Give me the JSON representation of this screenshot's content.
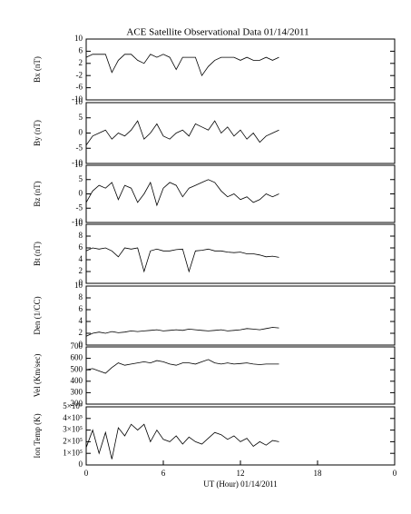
{
  "title": "ACE Satellite Observational Data   01/14/2011",
  "chart_data": [
    {
      "type": "line",
      "ylabel": "Bx (nT)",
      "color": "#000000",
      "ylim": [
        -10,
        10
      ],
      "yticks": [
        -10,
        -6,
        -2,
        2,
        6,
        10
      ],
      "x": [
        0,
        0.5,
        1,
        1.5,
        2,
        2.5,
        3,
        3.5,
        4,
        4.5,
        5,
        5.5,
        6,
        6.5,
        7,
        7.5,
        8,
        8.5,
        9,
        9.5,
        10,
        10.5,
        11,
        11.5,
        12,
        12.5,
        13,
        13.5,
        14,
        14.5,
        15
      ],
      "values": [
        4,
        5,
        5,
        5,
        -1,
        3,
        5,
        5,
        3,
        2,
        5,
        4,
        5,
        4,
        0,
        4,
        4,
        4,
        -2,
        1,
        3,
        4,
        4,
        4,
        3,
        4,
        3,
        3,
        4,
        3,
        4
      ]
    },
    {
      "type": "line",
      "ylabel": "By (nT)",
      "color": "#000000",
      "ylim": [
        -10,
        10
      ],
      "yticks": [
        -10,
        -5,
        0,
        5,
        10
      ],
      "x": [
        0,
        0.5,
        1,
        1.5,
        2,
        2.5,
        3,
        3.5,
        4,
        4.5,
        5,
        5.5,
        6,
        6.5,
        7,
        7.5,
        8,
        8.5,
        9,
        9.5,
        10,
        10.5,
        11,
        11.5,
        12,
        12.5,
        13,
        13.5,
        14,
        14.5,
        15
      ],
      "values": [
        -4,
        -1,
        0,
        1,
        -2,
        0,
        -1,
        1,
        4,
        -2,
        0,
        3,
        -1,
        -2,
        0,
        1,
        -1,
        3,
        2,
        1,
        4,
        0,
        2,
        -1,
        1,
        -2,
        0,
        -3,
        -1,
        0,
        1
      ]
    },
    {
      "type": "line",
      "ylabel": "Bz (nT)",
      "color": "#000000",
      "ylim": [
        -10,
        10
      ],
      "yticks": [
        -10,
        -5,
        0,
        5,
        10
      ],
      "x": [
        0,
        0.5,
        1,
        1.5,
        2,
        2.5,
        3,
        3.5,
        4,
        4.5,
        5,
        5.5,
        6,
        6.5,
        7,
        7.5,
        8,
        8.5,
        9,
        9.5,
        10,
        10.5,
        11,
        11.5,
        12,
        12.5,
        13,
        13.5,
        14,
        14.5,
        15
      ],
      "values": [
        -3,
        1,
        3,
        2,
        4,
        -2,
        3,
        2,
        -3,
        0,
        4,
        -4,
        2,
        4,
        3,
        -1,
        2,
        3,
        4,
        5,
        4,
        1,
        -1,
        0,
        -2,
        -1,
        -3,
        -2,
        0,
        -1,
        0
      ]
    },
    {
      "type": "line",
      "ylabel": "Bt (nT)",
      "color": "#000000",
      "ylim": [
        0,
        10
      ],
      "yticks": [
        0,
        2,
        4,
        6,
        8,
        10
      ],
      "x": [
        0,
        0.5,
        1,
        1.5,
        2,
        2.5,
        3,
        3.5,
        4,
        4.5,
        5,
        5.5,
        6,
        6.5,
        7,
        7.5,
        8,
        8.5,
        9,
        9.5,
        10,
        10.5,
        11,
        11.5,
        12,
        12.5,
        13,
        13.5,
        14,
        14.5,
        15
      ],
      "values": [
        5.5,
        6,
        5.8,
        6,
        5.5,
        4.5,
        6,
        5.8,
        6,
        2,
        5.5,
        5.8,
        5.5,
        5.5,
        5.7,
        5.8,
        2,
        5.5,
        5.6,
        5.8,
        5.5,
        5.5,
        5.3,
        5.2,
        5.3,
        5,
        5,
        4.8,
        4.5,
        4.6,
        4.4
      ]
    },
    {
      "type": "line",
      "ylabel": "Den (1/CC)",
      "color": "#000000",
      "ylim": [
        0,
        10
      ],
      "yticks": [
        0,
        2,
        4,
        6,
        8,
        10
      ],
      "x": [
        0,
        0.5,
        1,
        1.5,
        2,
        2.5,
        3,
        3.5,
        4,
        4.5,
        5,
        5.5,
        6,
        6.5,
        7,
        7.5,
        8,
        8.5,
        9,
        9.5,
        10,
        10.5,
        11,
        11.5,
        12,
        12.5,
        13,
        13.5,
        14,
        14.5,
        15
      ],
      "values": [
        1.5,
        2,
        2.2,
        2,
        2.3,
        2.1,
        2.2,
        2.4,
        2.3,
        2.4,
        2.5,
        2.6,
        2.4,
        2.5,
        2.6,
        2.5,
        2.7,
        2.6,
        2.5,
        2.4,
        2.5,
        2.6,
        2.4,
        2.5,
        2.6,
        2.8,
        2.7,
        2.6,
        2.8,
        3,
        2.9
      ]
    },
    {
      "type": "line",
      "ylabel": "Vel (Km/sec)",
      "color": "#000000",
      "ylim": [
        200,
        700
      ],
      "yticks": [
        200,
        300,
        400,
        500,
        600,
        700
      ],
      "x": [
        0,
        0.5,
        1,
        1.5,
        2,
        2.5,
        3,
        3.5,
        4,
        4.5,
        5,
        5.5,
        6,
        6.5,
        7,
        7.5,
        8,
        8.5,
        9,
        9.5,
        10,
        10.5,
        11,
        11.5,
        12,
        12.5,
        13,
        13.5,
        14,
        14.5,
        15
      ],
      "values": [
        500,
        510,
        490,
        470,
        520,
        560,
        540,
        550,
        560,
        570,
        560,
        580,
        570,
        550,
        540,
        560,
        560,
        550,
        570,
        590,
        560,
        550,
        560,
        550,
        555,
        560,
        550,
        545,
        550,
        550,
        550
      ]
    },
    {
      "type": "line",
      "ylabel": "Ion Temp (K)",
      "color": "#000000",
      "ylim": [
        0,
        500000
      ],
      "yticks": [
        0,
        {
          "value": 100000,
          "label": "1×10⁵"
        },
        {
          "value": 200000,
          "label": "2×10⁵"
        },
        {
          "value": 300000,
          "label": "3×10⁵"
        },
        {
          "value": 400000,
          "label": "4×10⁵"
        },
        {
          "value": 500000,
          "label": "5×10⁵"
        }
      ],
      "x": [
        0,
        0.5,
        1,
        1.5,
        2,
        2.5,
        3,
        3.5,
        4,
        4.5,
        5,
        5.5,
        6,
        6.5,
        7,
        7.5,
        8,
        8.5,
        9,
        9.5,
        10,
        10.5,
        11,
        11.5,
        12,
        12.5,
        13,
        13.5,
        14,
        14.5,
        15
      ],
      "values": [
        150000,
        300000,
        100000,
        280000,
        50000,
        320000,
        250000,
        350000,
        300000,
        350000,
        200000,
        300000,
        220000,
        200000,
        250000,
        180000,
        240000,
        200000,
        180000,
        230000,
        280000,
        260000,
        220000,
        250000,
        200000,
        230000,
        160000,
        200000,
        170000,
        210000,
        200000
      ],
      "xlim": [
        0,
        24
      ],
      "xticks": [
        0,
        6,
        12,
        18,
        {
          "value": 24,
          "label": "0"
        }
      ],
      "xlabel": "UT (Hour)   01/14/2011"
    }
  ]
}
